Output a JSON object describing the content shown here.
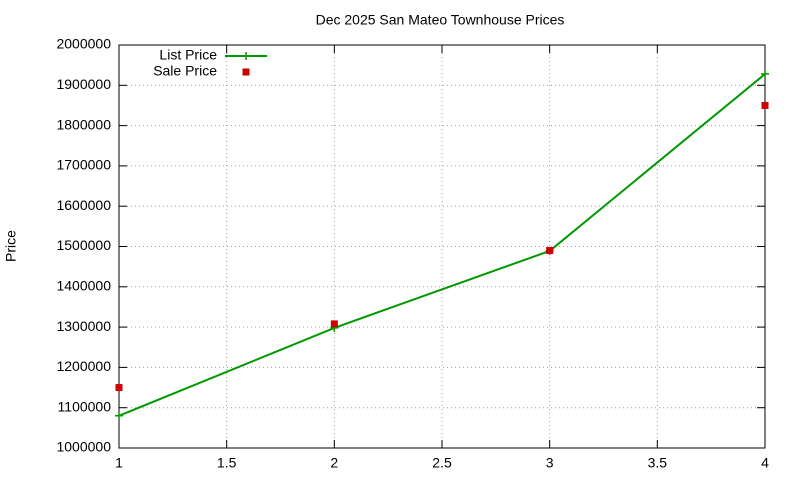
{
  "chart_data": {
    "type": "line",
    "title": "Dec 2025 San Mateo Townhouse Prices",
    "y_label": "Price",
    "x": [
      1,
      2,
      3,
      4
    ],
    "series": [
      {
        "name": "List Price",
        "color": "#009900",
        "mode": "lines+markers",
        "marker": "plus",
        "values": [
          1080000,
          1298000,
          1489000,
          1928000
        ]
      },
      {
        "name": "Sale Price",
        "color": "#cc0000",
        "mode": "markers",
        "marker": "square",
        "values": [
          1150000,
          1308000,
          1490000,
          1850000
        ]
      }
    ],
    "xlim": [
      1,
      4
    ],
    "xticks": [
      1,
      1.5,
      2,
      2.5,
      3,
      3.5,
      4
    ],
    "ylim": [
      1000000,
      2000000
    ],
    "yticks": [
      1000000,
      1100000,
      1200000,
      1300000,
      1400000,
      1500000,
      1600000,
      1700000,
      1800000,
      1900000,
      2000000
    ],
    "grid": true,
    "legend": "top-left"
  }
}
